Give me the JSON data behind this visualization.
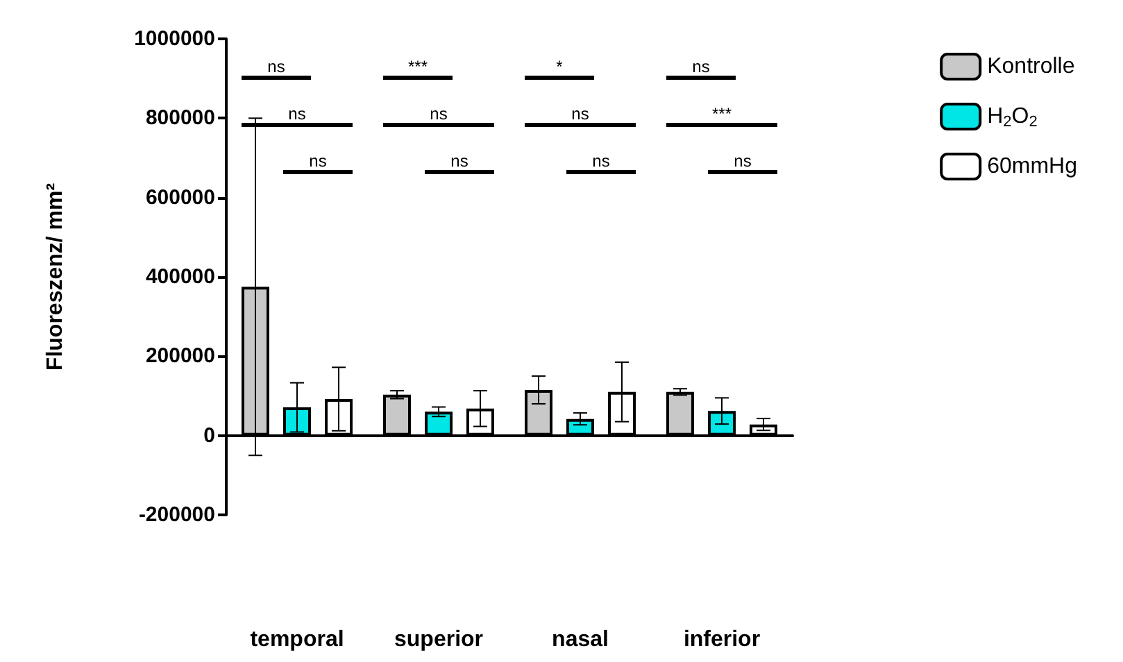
{
  "chart_data": {
    "type": "bar",
    "ylabel": "Fluoreszenz/ mm²",
    "categories": [
      "temporal",
      "superior",
      "nasal",
      "inferior"
    ],
    "series": [
      {
        "name": "Kontrolle",
        "color": "#c8c8c8",
        "values": [
          375000,
          103000,
          115000,
          110000
        ],
        "errors": [
          425000,
          10000,
          35000,
          8000
        ]
      },
      {
        "name": "H$_{2}$O$_{2}$",
        "color": "#00e5e5",
        "values": [
          71000,
          60000,
          42000,
          62000
        ],
        "errors": [
          62000,
          12000,
          15000,
          33000
        ]
      },
      {
        "name": "60mmHg",
        "color": "#ffffff",
        "values": [
          92000,
          68000,
          110000,
          28000
        ],
        "errors": [
          80000,
          45000,
          75000,
          15000
        ]
      }
    ],
    "ylim": [
      -200000,
      1000000
    ],
    "yticks": [
      -200000,
      0,
      200000,
      400000,
      600000,
      800000,
      1000000
    ],
    "legend": "top right",
    "annotations": [
      "ns",
      "ns",
      "ns",
      "***",
      "ns",
      "ns",
      "*",
      "ns",
      "ns",
      "ns",
      "***",
      "ns"
    ]
  }
}
